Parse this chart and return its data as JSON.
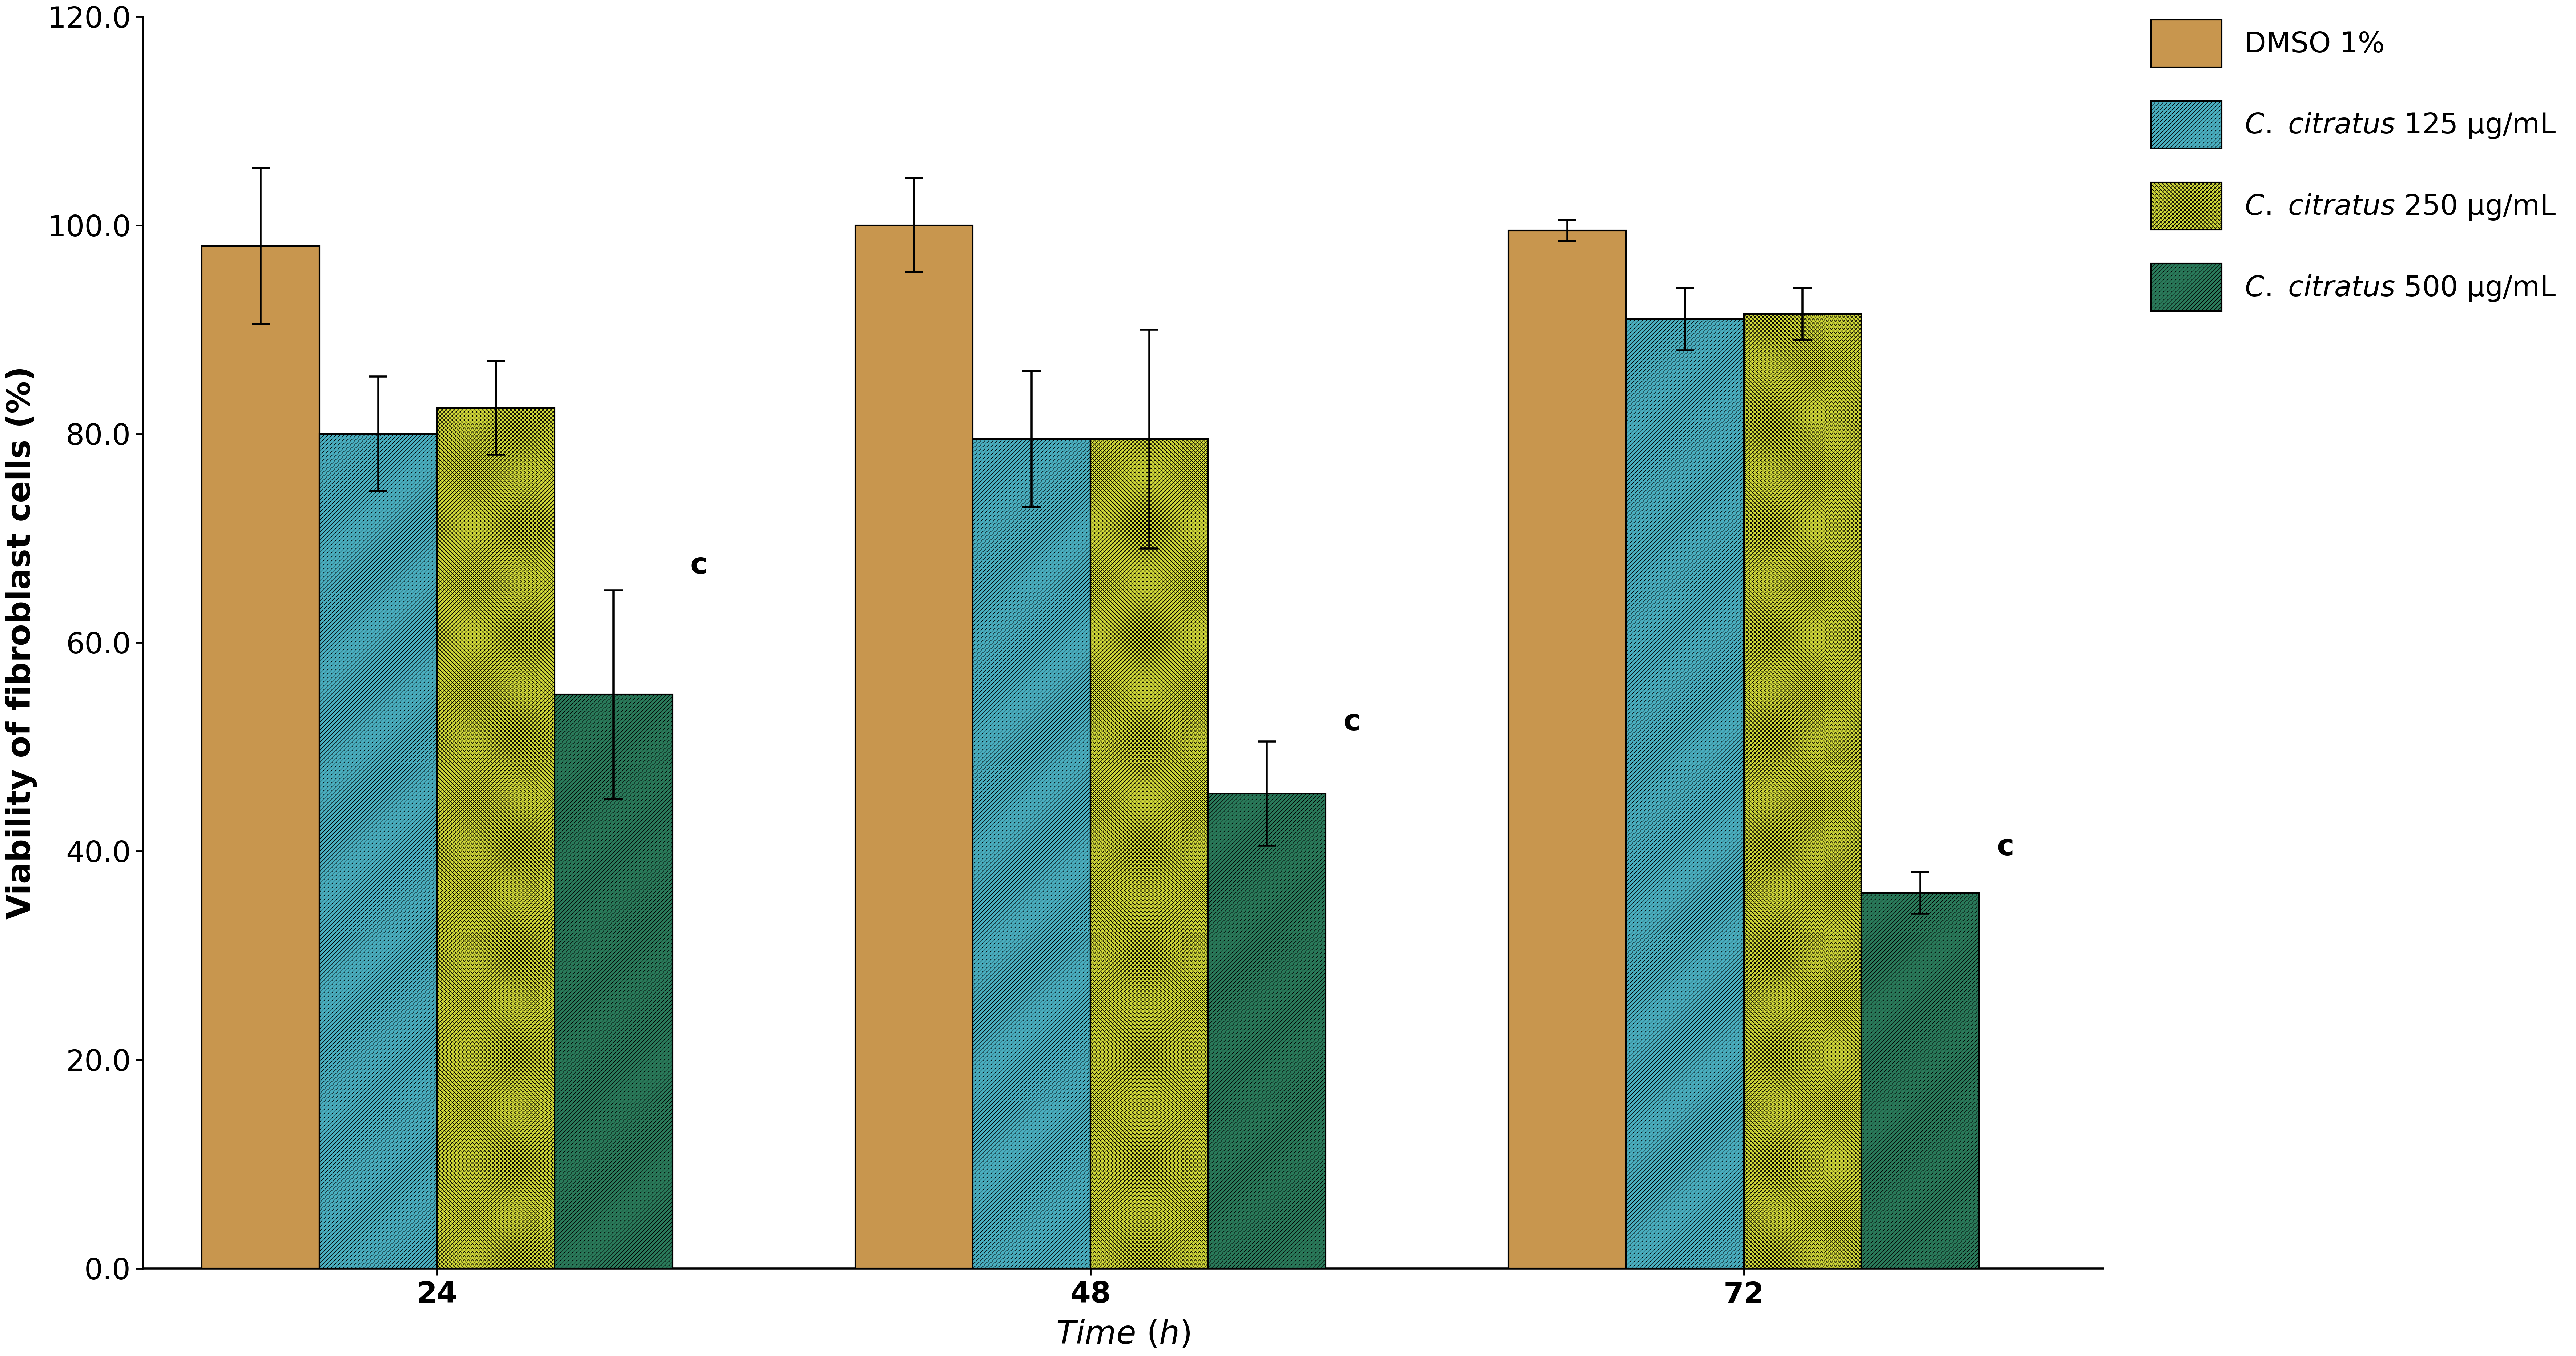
{
  "groups": [
    "24",
    "48",
    "72"
  ],
  "series": [
    {
      "label_plain": "DMSO 1%",
      "label_italic": false,
      "values": [
        98.0,
        100.0,
        99.5
      ],
      "errors": [
        7.5,
        4.5,
        1.0
      ],
      "color": "#C8964E",
      "hatch": "",
      "edgecolor": "#000000"
    },
    {
      "label_plain": "C. citratus 125 μg/mL",
      "label_italic": true,
      "values": [
        80.0,
        79.5,
        91.0
      ],
      "errors": [
        5.5,
        6.5,
        3.0
      ],
      "color": "#4AAFC0",
      "hatch": "///",
      "edgecolor": "#000000"
    },
    {
      "label_plain": "C. citratus 250 μg/mL",
      "label_italic": true,
      "values": [
        82.5,
        79.5,
        91.5
      ],
      "errors": [
        4.5,
        10.5,
        2.5
      ],
      "color": "#D4DC3A",
      "hatch": "xxx",
      "edgecolor": "#000000"
    },
    {
      "label_plain": "C. citratus 500 μg/mL",
      "label_italic": true,
      "values": [
        55.0,
        45.5,
        36.0
      ],
      "errors": [
        10.0,
        5.0,
        2.0
      ],
      "color": "#2A7A5A",
      "hatch": "///",
      "edgecolor": "#000000"
    }
  ],
  "ylabel": "Viability of fibroblast cells (%)",
  "ylim": [
    0,
    120
  ],
  "yticks": [
    0.0,
    20.0,
    40.0,
    60.0,
    80.0,
    100.0,
    120.0
  ],
  "bar_width": 0.18,
  "group_positions": [
    1,
    2,
    3
  ],
  "significance_label": "c",
  "significance_offsets": [
    {
      "group_idx": 0,
      "series_idx": 3,
      "y": 66
    },
    {
      "group_idx": 1,
      "series_idx": 3,
      "y": 51
    },
    {
      "group_idx": 2,
      "series_idx": 3,
      "y": 39
    }
  ],
  "background_color": "#ffffff",
  "error_capsize": 18,
  "error_linewidth": 4.0,
  "capthick": 4.0,
  "bar_linewidth": 3.0,
  "spine_linewidth": 4.0,
  "tick_fontsize": 58,
  "label_fontsize": 64,
  "legend_fontsize": 56,
  "sig_fontsize": 58,
  "fig_width": 70.87,
  "fig_height": 37.31,
  "dpi": 100
}
